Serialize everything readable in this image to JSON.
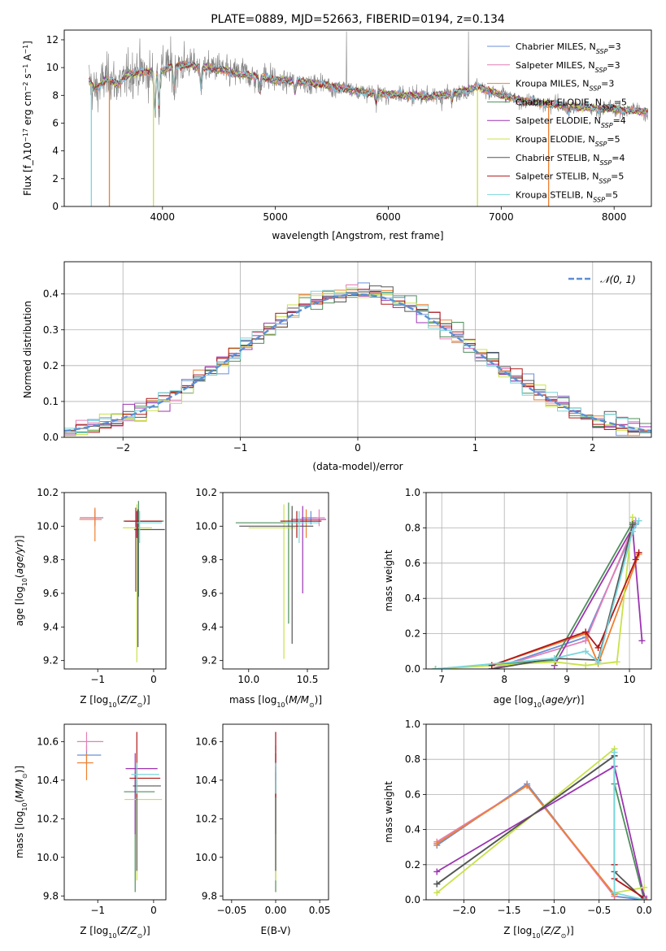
{
  "series_styles": [
    {
      "name": "Chabrier MILES, N_SSP=3",
      "color": "#6a8fd8"
    },
    {
      "name": "Salpeter MILES, N_SSP=3",
      "color": "#e47fb6"
    },
    {
      "name": "Kroupa MILES, N_SSP=3",
      "color": "#ee8030"
    },
    {
      "name": "Chabrier ELODIE, N_SSP=5",
      "color": "#4d8f5a"
    },
    {
      "name": "Salpeter ELODIE, N_SSP=4",
      "color": "#9b35b0"
    },
    {
      "name": "Kroupa ELODIE, N_SSP=5",
      "color": "#c8e24a"
    },
    {
      "name": "Chabrier STELIB, N_SSP=4",
      "color": "#555555"
    },
    {
      "name": "Salpeter STELIB, N_SSP=5",
      "color": "#b01818"
    },
    {
      "name": "Kroupa STELIB, N_SSP=5",
      "color": "#7ad6dc"
    }
  ],
  "chart_data": [
    {
      "id": "spectrum",
      "type": "line",
      "title": "PLATE=0889, MJD=52663, FIBERID=0194, z=0.134",
      "xlabel": "wavelength [Angstrom, rest frame]",
      "ylabel": "Flux [f_λ10^-17 erg cm^-2 s^-1 A^-1]",
      "xlim": [
        3130,
        8330
      ],
      "ylim": [
        0,
        12.7
      ],
      "xticks": [
        4000,
        5000,
        6000,
        7000,
        8000
      ],
      "yticks": [
        0,
        2,
        4,
        6,
        8,
        10,
        12
      ],
      "legend_position": "top-right",
      "legend": [
        "Chabrier MILES, N_SSP=3",
        "Salpeter MILES, N_SSP=3",
        "Kroupa MILES, N_SSP=3",
        "Chabrier ELODIE, N_SSP=5",
        "Salpeter ELODIE, N_SSP=4",
        "Kroupa ELODIE, N_SSP=5",
        "Chabrier STELIB, N_SSP=4",
        "Salpeter STELIB, N_SSP=5",
        "Kroupa STELIB, N_SSP=5"
      ],
      "observed_color": "#808080",
      "model_envelope": {
        "x": [
          3350,
          3400,
          3500,
          3600,
          3700,
          3800,
          3900,
          4000,
          4100,
          4200,
          4300,
          4400,
          4500,
          4600,
          4700,
          4800,
          4900,
          5000,
          5200,
          5400,
          5600,
          5800,
          6000,
          6200,
          6400,
          6600,
          6800,
          7000,
          7200,
          7400,
          7600,
          7800,
          8000,
          8300
        ],
        "y": [
          9.0,
          8.4,
          9.2,
          8.8,
          9.5,
          9.7,
          9.6,
          9.8,
          10.1,
          10.2,
          10.1,
          10.0,
          9.9,
          9.7,
          9.5,
          9.4,
          9.3,
          9.1,
          9.0,
          8.8,
          8.5,
          8.2,
          8.1,
          8.0,
          7.9,
          8.2,
          8.6,
          8.0,
          7.6,
          7.4,
          7.2,
          7.1,
          7.0,
          6.8
        ]
      },
      "drop_lines": [
        {
          "x": 3370,
          "series": 8
        },
        {
          "x": 3530,
          "series": 2
        },
        {
          "x": 3920,
          "series": 5
        },
        {
          "x": 6790,
          "series": 5
        },
        {
          "x": 7420,
          "series": 2
        }
      ]
    },
    {
      "id": "residuals",
      "type": "histogram",
      "xlabel": "(data-model)/error",
      "ylabel": "Normed distribution",
      "xlim": [
        -2.5,
        2.5
      ],
      "ylim": [
        0,
        0.49
      ],
      "xticks": [
        -2,
        -1,
        0,
        1,
        2
      ],
      "yticks": [
        0.0,
        0.1,
        0.2,
        0.3,
        0.4
      ],
      "grid": true,
      "bin_width": 0.1,
      "reference_curve": {
        "label": "𝒩(0, 1)",
        "color": "#5b8fd6",
        "style": "dashed",
        "mu": 0,
        "sigma": 1
      },
      "legend_position": "top-right"
    },
    {
      "id": "age_vs_Z",
      "type": "scatter",
      "xlabel": "Z [log10(Z/Z⊙)]",
      "ylabel": "age [log10(age/yr)]",
      "xlim": [
        -1.6,
        0.22
      ],
      "ylim": [
        9.15,
        10.2
      ],
      "xticks": [
        -1,
        0
      ],
      "yticks": [
        9.2,
        9.4,
        9.6,
        9.8,
        10.0,
        10.2
      ],
      "points": [
        {
          "series": 0,
          "x": -1.05,
          "y": 10.05,
          "xerr": [
            0.27,
            0.15
          ],
          "yerr": [
            0.04,
            0.04
          ]
        },
        {
          "series": 1,
          "x": -1.05,
          "y": 10.05,
          "xerr": [
            0.27,
            0.13
          ],
          "yerr": [
            0.05,
            0.05
          ]
        },
        {
          "series": 2,
          "x": -1.05,
          "y": 10.04,
          "xerr": [
            0.28,
            0.12
          ],
          "yerr": [
            0.13,
            0.07
          ]
        },
        {
          "series": 3,
          "x": -0.27,
          "y": 10.03,
          "xerr": [
            0.27,
            0.45
          ],
          "yerr": [
            0.45,
            0.12
          ]
        },
        {
          "series": 4,
          "x": -0.32,
          "y": 10.03,
          "xerr": [
            0.1,
            0.47
          ],
          "yerr": [
            0.42,
            0.08
          ]
        },
        {
          "series": 5,
          "x": -0.3,
          "y": 9.99,
          "xerr": [
            0.25,
            0.27
          ],
          "yerr": [
            0.8,
            0.14
          ]
        },
        {
          "series": 6,
          "x": -0.28,
          "y": 9.98,
          "xerr": [
            0.07,
            0.48
          ],
          "yerr": [
            0.7,
            0.12
          ]
        },
        {
          "series": 7,
          "x": -0.3,
          "y": 10.03,
          "xerr": [
            0.22,
            0.45
          ],
          "yerr": [
            0.1,
            0.06
          ]
        },
        {
          "series": 8,
          "x": -0.25,
          "y": 10.02,
          "xerr": [
            0.05,
            0.4
          ],
          "yerr": [
            0.12,
            0.07
          ]
        }
      ]
    },
    {
      "id": "age_vs_mass",
      "type": "scatter",
      "xlabel": "mass [log10(M/M⊙)]",
      "ylabel": "",
      "xlim": [
        9.78,
        10.68
      ],
      "ylim": [
        9.15,
        10.2
      ],
      "xticks": [
        10.0,
        10.5
      ],
      "yticks": [
        9.2,
        9.4,
        9.6,
        9.8,
        10.0,
        10.2
      ],
      "points": [
        {
          "series": 0,
          "x": 10.53,
          "y": 10.05,
          "xerr": [
            0.08,
            0.05
          ],
          "yerr": [
            0.04,
            0.04
          ]
        },
        {
          "series": 1,
          "x": 10.6,
          "y": 10.05,
          "xerr": [
            0.06,
            0.05
          ],
          "yerr": [
            0.05,
            0.05
          ]
        },
        {
          "series": 2,
          "x": 10.49,
          "y": 10.03,
          "xerr": [
            0.06,
            0.05
          ],
          "yerr": [
            0.1,
            0.07
          ]
        },
        {
          "series": 3,
          "x": 10.34,
          "y": 10.02,
          "xerr": [
            0.45,
            0.1
          ],
          "yerr": [
            0.6,
            0.12
          ]
        },
        {
          "series": 4,
          "x": 10.46,
          "y": 10.04,
          "xerr": [
            0.1,
            0.2
          ],
          "yerr": [
            0.44,
            0.08
          ]
        },
        {
          "series": 5,
          "x": 10.3,
          "y": 9.99,
          "xerr": [
            0.3,
            0.1
          ],
          "yerr": [
            0.78,
            0.14
          ]
        },
        {
          "series": 6,
          "x": 10.37,
          "y": 10.0,
          "xerr": [
            0.45,
            0.18
          ],
          "yerr": [
            0.7,
            0.12
          ]
        },
        {
          "series": 7,
          "x": 10.41,
          "y": 10.03,
          "xerr": [
            0.14,
            0.21
          ],
          "yerr": [
            0.1,
            0.06
          ]
        },
        {
          "series": 8,
          "x": 10.43,
          "y": 10.02,
          "xerr": [
            0.12,
            0.17
          ],
          "yerr": [
            0.12,
            0.07
          ]
        }
      ]
    },
    {
      "id": "massweight_vs_age",
      "type": "line",
      "xlabel": "age [log10(age/yr)]",
      "ylabel": "mass weight",
      "xlim": [
        6.75,
        10.35
      ],
      "ylim": [
        0,
        1.0
      ],
      "xticks": [
        7,
        8,
        9,
        10
      ],
      "yticks": [
        0.0,
        0.2,
        0.4,
        0.6,
        0.8,
        1.0
      ],
      "grid": true,
      "series": [
        {
          "series": 0,
          "x": [
            7.8,
            9.3,
            10.1
          ],
          "y": [
            0.0,
            0.18,
            0.82
          ]
        },
        {
          "series": 1,
          "x": [
            7.8,
            9.3,
            10.1
          ],
          "y": [
            0.0,
            0.16,
            0.84
          ]
        },
        {
          "series": 2,
          "x": [
            7.8,
            9.3,
            9.5,
            10.15
          ],
          "y": [
            0.02,
            0.2,
            0.03,
            0.65
          ]
        },
        {
          "series": 3,
          "x": [
            6.9,
            8.8,
            10.05
          ],
          "y": [
            0.0,
            0.05,
            0.83
          ]
        },
        {
          "series": 4,
          "x": [
            8.8,
            10.05,
            10.2
          ],
          "y": [
            0.02,
            0.8,
            0.16
          ]
        },
        {
          "series": 5,
          "x": [
            6.9,
            8.8,
            9.3,
            9.8,
            10.05
          ],
          "y": [
            0.0,
            0.04,
            0.02,
            0.04,
            0.86
          ]
        },
        {
          "series": 6,
          "x": [
            7.8,
            8.8,
            9.5,
            10.05
          ],
          "y": [
            0.0,
            0.06,
            0.05,
            0.82
          ]
        },
        {
          "series": 7,
          "x": [
            7.8,
            9.3,
            9.5,
            10.1,
            10.15
          ],
          "y": [
            0.02,
            0.21,
            0.12,
            0.62,
            0.66
          ]
        },
        {
          "series": 8,
          "x": [
            6.9,
            8.8,
            9.3,
            9.5,
            10.05,
            10.15
          ],
          "y": [
            0.0,
            0.06,
            0.1,
            0.04,
            0.78,
            0.84
          ]
        }
      ]
    },
    {
      "id": "mass_vs_Z",
      "type": "scatter",
      "xlabel": "Z [log10(Z/Z⊙)]",
      "ylabel": "mass [log10(M/M⊙)]",
      "xlim": [
        -1.6,
        0.22
      ],
      "ylim": [
        9.78,
        10.69
      ],
      "xticks": [
        -1,
        0
      ],
      "yticks": [
        9.8,
        10.0,
        10.2,
        10.4,
        10.6
      ],
      "points": [
        {
          "series": 0,
          "x": -1.2,
          "y": 10.53,
          "xerr": [
            0.17,
            0.26
          ],
          "yerr": [
            0.05,
            0.05
          ]
        },
        {
          "series": 1,
          "x": -1.2,
          "y": 10.6,
          "xerr": [
            0.17,
            0.3
          ],
          "yerr": [
            0.05,
            0.05
          ]
        },
        {
          "series": 2,
          "x": -1.2,
          "y": 10.49,
          "xerr": [
            0.17,
            0.12
          ],
          "yerr": [
            0.09,
            0.05
          ]
        },
        {
          "series": 3,
          "x": -0.33,
          "y": 10.34,
          "xerr": [
            0.2,
            0.35
          ],
          "yerr": [
            0.52,
            0.1
          ]
        },
        {
          "series": 4,
          "x": -0.33,
          "y": 10.46,
          "xerr": [
            0.17,
            0.4
          ],
          "yerr": [
            0.34,
            0.08
          ]
        },
        {
          "series": 5,
          "x": -0.3,
          "y": 10.3,
          "xerr": [
            0.22,
            0.45
          ],
          "yerr": [
            0.42,
            0.08
          ]
        },
        {
          "series": 6,
          "x": -0.3,
          "y": 10.37,
          "xerr": [
            0.07,
            0.43
          ],
          "yerr": [
            0.44,
            0.1
          ]
        },
        {
          "series": 7,
          "x": -0.3,
          "y": 10.41,
          "xerr": [
            0.13,
            0.42
          ],
          "yerr": [
            0.1,
            0.24
          ]
        },
        {
          "series": 8,
          "x": -0.3,
          "y": 10.43,
          "xerr": [
            0.1,
            0.4
          ],
          "yerr": [
            0.1,
            0.06
          ]
        }
      ]
    },
    {
      "id": "mass_vs_EBV",
      "type": "scatter",
      "xlabel": "E(B-V)",
      "ylabel": "",
      "xlim": [
        -0.06,
        0.06
      ],
      "ylim": [
        9.78,
        10.69
      ],
      "xticks": [
        -0.05,
        0.0,
        0.05
      ],
      "xtick_labels": [
        "−0.05",
        "0.00",
        "0.05"
      ],
      "yticks": [
        9.8,
        10.0,
        10.2,
        10.4,
        10.6
      ],
      "points": [
        {
          "series": 0,
          "x": 0.0,
          "y": 10.53,
          "xerr": [
            0,
            0
          ],
          "yerr": [
            0.05,
            0.05
          ]
        },
        {
          "series": 1,
          "x": 0.0,
          "y": 10.6,
          "xerr": [
            0,
            0
          ],
          "yerr": [
            0.05,
            0.05
          ]
        },
        {
          "series": 2,
          "x": 0.0,
          "y": 10.49,
          "xerr": [
            0,
            0
          ],
          "yerr": [
            0.09,
            0.05
          ]
        },
        {
          "series": 3,
          "x": 0.0,
          "y": 10.34,
          "xerr": [
            0,
            0
          ],
          "yerr": [
            0.52,
            0.1
          ]
        },
        {
          "series": 4,
          "x": 0.0,
          "y": 10.46,
          "xerr": [
            0,
            0
          ],
          "yerr": [
            0.34,
            0.08
          ]
        },
        {
          "series": 5,
          "x": 0.0,
          "y": 10.3,
          "xerr": [
            0,
            0
          ],
          "yerr": [
            0.42,
            0.08
          ]
        },
        {
          "series": 6,
          "x": 0.0,
          "y": 10.37,
          "xerr": [
            0,
            0
          ],
          "yerr": [
            0.44,
            0.1
          ]
        },
        {
          "series": 7,
          "x": 0.0,
          "y": 10.41,
          "xerr": [
            0,
            0
          ],
          "yerr": [
            0.1,
            0.24
          ]
        },
        {
          "series": 8,
          "x": 0.0,
          "y": 10.43,
          "xerr": [
            0,
            0
          ],
          "yerr": [
            0.1,
            0.06
          ]
        }
      ]
    },
    {
      "id": "massweight_vs_Z",
      "type": "line",
      "xlabel": "Z [log10(Z/Z⊙)]",
      "ylabel": "mass weight",
      "xlim": [
        -2.42,
        0.08
      ],
      "ylim": [
        0,
        1.0
      ],
      "xticks": [
        -2.0,
        -1.5,
        -1.0,
        -0.5,
        0.0
      ],
      "xtick_labels": [
        "−2.0",
        "−1.5",
        "−1.0",
        "−0.5",
        "0.0"
      ],
      "yticks": [
        0.0,
        0.2,
        0.4,
        0.6,
        0.8,
        1.0
      ],
      "grid": true,
      "series": [
        {
          "series": 0,
          "x": [
            -2.3,
            -1.3,
            -0.33,
            0.0
          ],
          "y": [
            0.31,
            0.66,
            0.02,
            0.0
          ]
        },
        {
          "series": 1,
          "x": [
            -2.3,
            -1.3,
            -0.33
          ],
          "y": [
            0.33,
            0.65,
            0.02
          ]
        },
        {
          "series": 2,
          "x": [
            -2.3,
            -1.3,
            -0.33
          ],
          "y": [
            0.32,
            0.65,
            0.03
          ]
        },
        {
          "series": 3,
          "x": [
            -2.3,
            -0.33,
            -0.33,
            0.0
          ],
          "y": [
            0.09,
            0.82,
            0.66,
            0.0
          ]
        },
        {
          "series": 4,
          "x": [
            -2.3,
            -0.33,
            0.0
          ],
          "y": [
            0.16,
            0.76,
            0.02
          ]
        },
        {
          "series": 5,
          "x": [
            -2.3,
            -0.33,
            -0.33,
            0.0
          ],
          "y": [
            0.04,
            0.86,
            0.04,
            0.07
          ]
        },
        {
          "series": 6,
          "x": [
            -2.3,
            -0.33,
            -0.33,
            0.0
          ],
          "y": [
            0.09,
            0.82,
            0.16,
            0.0
          ]
        },
        {
          "series": 7,
          "x": [
            -0.33,
            -0.33,
            0.0
          ],
          "y": [
            0.2,
            0.12,
            0.01
          ]
        },
        {
          "series": 8,
          "x": [
            -0.33,
            -0.33,
            0.0
          ],
          "y": [
            0.84,
            0.04,
            0.0
          ]
        }
      ]
    }
  ]
}
